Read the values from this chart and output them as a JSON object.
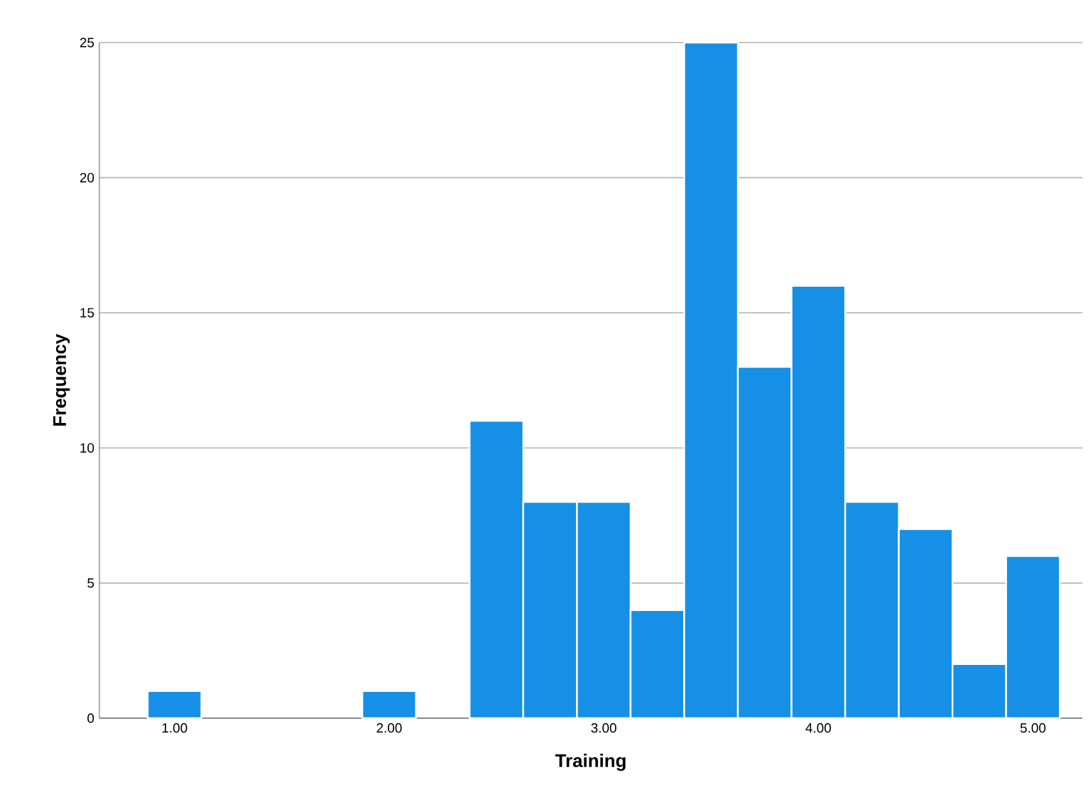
{
  "chart_data": {
    "type": "histogram",
    "xlabel": "Training",
    "ylabel": "Frequency",
    "bins": [
      0.875,
      1.125,
      1.375,
      1.625,
      1.875,
      2.125,
      2.375,
      2.625,
      2.875,
      3.125,
      3.375,
      3.625,
      3.875,
      4.125,
      4.375,
      4.625,
      4.875,
      5.125
    ],
    "values": [
      1,
      0,
      0,
      0,
      1,
      0,
      11,
      8,
      8,
      4,
      25,
      13,
      16,
      8,
      7,
      2,
      6
    ],
    "color": "#1590e6",
    "xlim": [
      0.65,
      5.23
    ],
    "ylim": [
      0,
      25
    ],
    "xticks": [
      {
        "value": 1,
        "label": "1.00"
      },
      {
        "value": 2,
        "label": "2.00"
      },
      {
        "value": 3,
        "label": "3.00"
      },
      {
        "value": 4,
        "label": "4.00"
      },
      {
        "value": 5,
        "label": "5.00"
      }
    ],
    "yticks": [
      0,
      5,
      10,
      15,
      20,
      25
    ],
    "grid": "y"
  }
}
